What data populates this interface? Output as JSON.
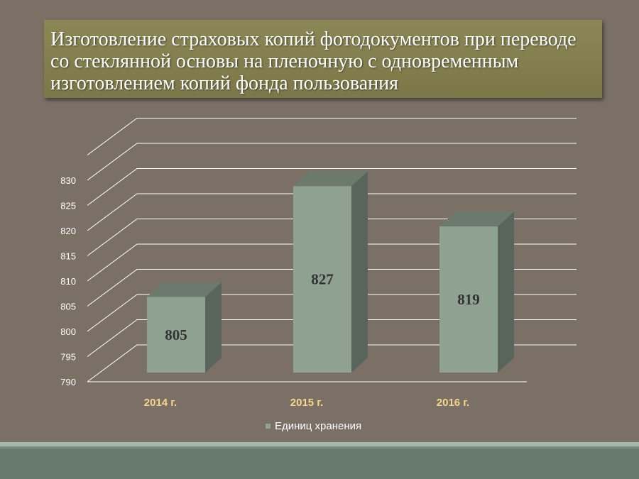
{
  "title": "Изготовление страховых копий фотодокументов при переводе со стеклянной основы на пленочную с одновременным изготовлением копий фонда пользования",
  "legend": {
    "label": "Единиц хранения"
  },
  "chart_data": {
    "type": "bar",
    "categories": [
      "2014 г.",
      "2015 г.",
      "2016 г."
    ],
    "series": [
      {
        "name": "Единиц хранения",
        "values": [
          805,
          827,
          819
        ]
      }
    ],
    "data_labels": [
      "805",
      "827",
      "819"
    ],
    "ylim": [
      790,
      830
    ],
    "yticks": [
      790,
      795,
      800,
      805,
      810,
      815,
      820,
      825,
      830
    ],
    "grid": true,
    "legend_position": "bottom",
    "colors": {
      "bar_front": "#8fa291",
      "bar_top": "#6c7a6e",
      "bar_side": "#59655b",
      "grid": "#ffffff",
      "category_label": "#f6d58e",
      "data_label": "#333333"
    }
  }
}
